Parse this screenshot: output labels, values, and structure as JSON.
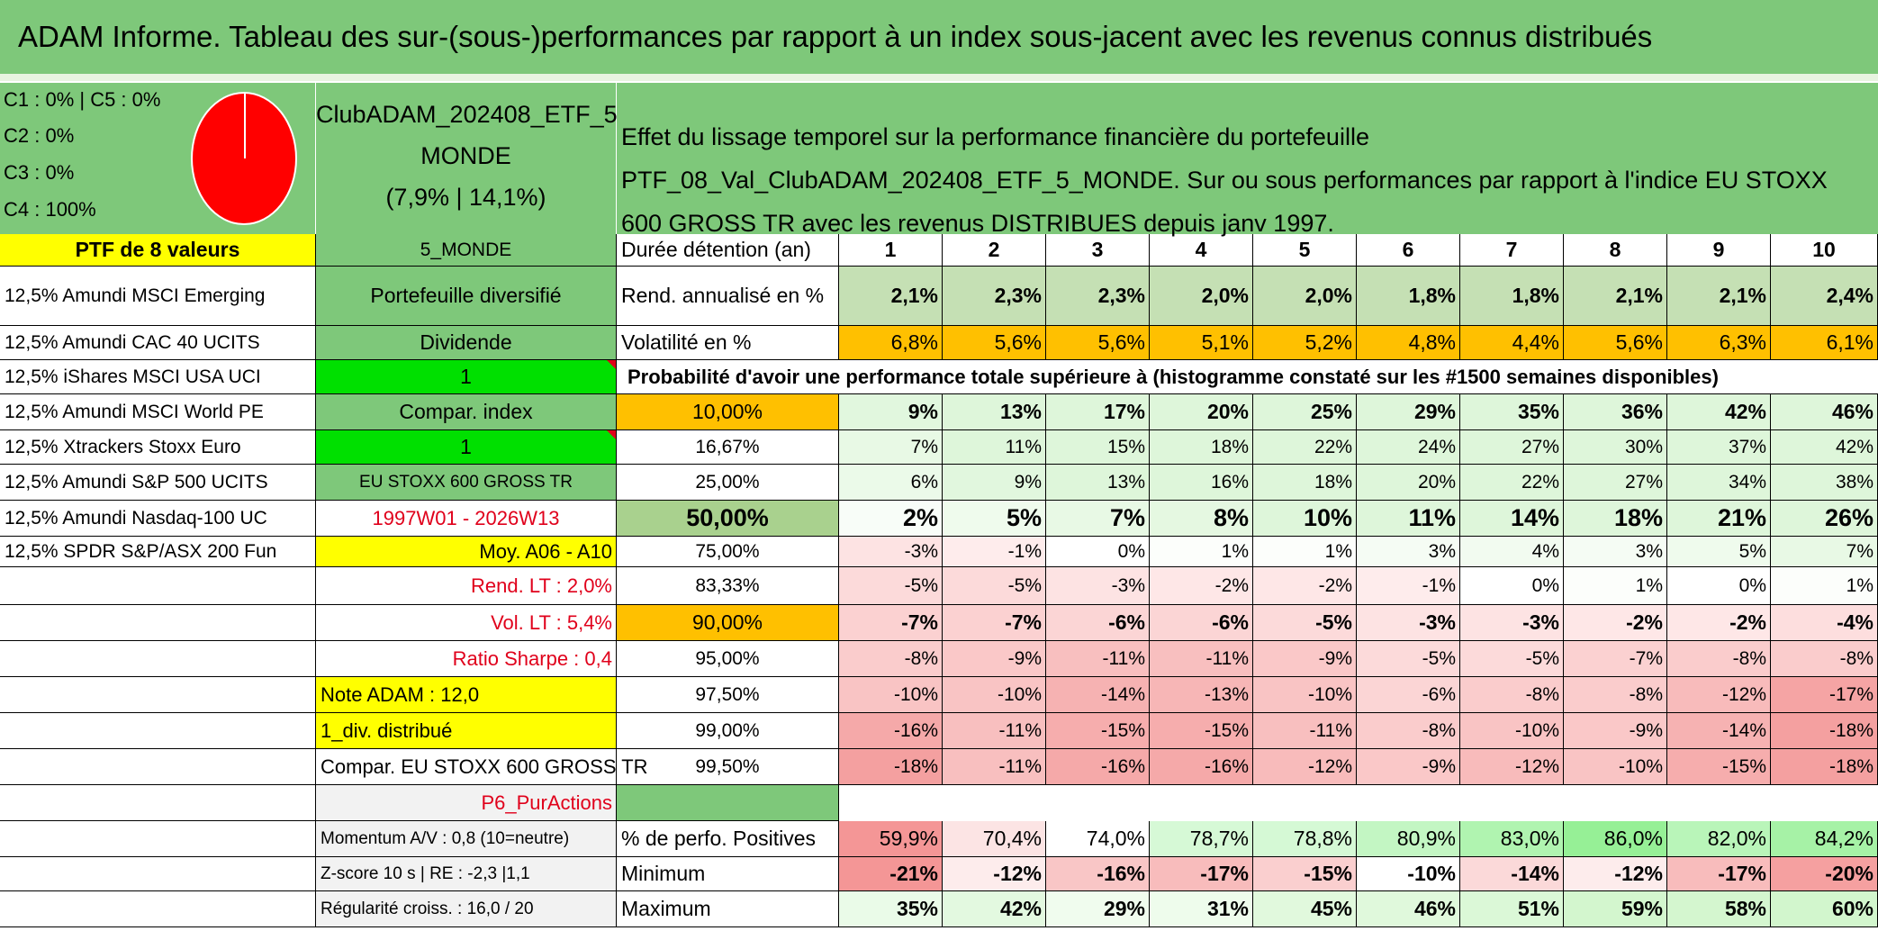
{
  "title": "ADAM Informe. Tableau des sur-(sous-)performances par rapport à un index sous-jacent avec les revenus connus distribués",
  "pie": {
    "labels": [
      "C1 : 0% | C5 : 0%",
      "C2 : 0%",
      "C3 : 0%",
      "C4 : 100%"
    ],
    "color": "#ff0000"
  },
  "portfolio": {
    "name_line1": "ClubADAM_202408_ETF_5_",
    "name_line2": "MONDE",
    "name_line3": "(7,9% | 14,1%)",
    "description": "Effet du lissage temporel sur la performance financière du portefeuille PTF_08_Val_ClubADAM_202408_ETF_5_MONDE. Sur ou sous performances par rapport à l'indice EU STOXX 600 GROSS TR avec les revenus DISTRIBUES depuis janv 1997."
  },
  "holdings_header": "PTF de 8 valeurs",
  "holdings": [
    "12,5% Amundi MSCI Emerging",
    "12,5% Amundi CAC 40 UCITS",
    "12,5% iShares MSCI USA UCI",
    "12,5% Amundi MSCI World PE",
    "12,5% Xtrackers Stoxx Euro",
    "12,5% Amundi S&P 500 UCITS",
    "12,5% Amundi Nasdaq-100 UC",
    "12,5% SPDR S&P/ASX 200 Fun"
  ],
  "side": {
    "code": "5_MONDE",
    "type": "Portefeuille diversifié",
    "dividende_label": "Dividende",
    "dividende_value": "1",
    "compar_label": "Compar. index",
    "compar_value": "1",
    "index_name": "EU STOXX 600 GROSS TR",
    "period": "1997W01 - 2026W13",
    "moy": "Moy. A06 - A10",
    "rend_lt": "Rend. LT : 2,0%",
    "vol_lt": "Vol. LT : 5,4%",
    "sharpe": "Ratio Sharpe : 0,4",
    "note": "Note ADAM : 12,0",
    "div": "1_div. distribué",
    "compar_full": "Compar. EU STOXX 600 GROSS TR",
    "p6": "P6_PurActions",
    "momentum": "Momentum A/V : 0,8 (10=neutre)",
    "zscore": "Z-score 10 s | RE : -2,3 |1,1",
    "regularite": "Régularité croiss. : 16,0 / 20"
  },
  "table": {
    "duree_label": "Durée détention (an)",
    "years": [
      "1",
      "2",
      "3",
      "4",
      "5",
      "6",
      "7",
      "8",
      "9",
      "10"
    ],
    "rend_label": "Rend. annualisé en %",
    "rend": [
      "2,1%",
      "2,3%",
      "2,3%",
      "2,0%",
      "2,0%",
      "1,8%",
      "1,8%",
      "2,1%",
      "2,1%",
      "2,4%"
    ],
    "vol_label": "Volatilité en %",
    "vol": [
      "6,8%",
      "5,6%",
      "5,6%",
      "5,1%",
      "5,2%",
      "4,8%",
      "4,4%",
      "5,6%",
      "6,3%",
      "6,1%"
    ],
    "prob_label": "Probabilité d'avoir une performance totale supérieure à (histogramme constaté sur les #1500 semaines disponibles)",
    "quantiles": [
      {
        "q": "10,00%",
        "v": [
          "9%",
          "13%",
          "17%",
          "20%",
          "25%",
          "29%",
          "35%",
          "36%",
          "42%",
          "46%"
        ]
      },
      {
        "q": "16,67%",
        "v": [
          "7%",
          "11%",
          "15%",
          "18%",
          "22%",
          "24%",
          "27%",
          "30%",
          "37%",
          "42%"
        ]
      },
      {
        "q": "25,00%",
        "v": [
          "6%",
          "9%",
          "13%",
          "16%",
          "18%",
          "20%",
          "22%",
          "27%",
          "34%",
          "38%"
        ]
      },
      {
        "q": "50,00%",
        "v": [
          "2%",
          "5%",
          "7%",
          "8%",
          "10%",
          "11%",
          "14%",
          "18%",
          "21%",
          "26%"
        ]
      },
      {
        "q": "75,00%",
        "v": [
          "-3%",
          "-1%",
          "0%",
          "1%",
          "1%",
          "3%",
          "4%",
          "3%",
          "5%",
          "7%"
        ]
      },
      {
        "q": "83,33%",
        "v": [
          "-5%",
          "-5%",
          "-3%",
          "-2%",
          "-2%",
          "-1%",
          "0%",
          "1%",
          "0%",
          "1%"
        ]
      },
      {
        "q": "90,00%",
        "v": [
          "-7%",
          "-7%",
          "-6%",
          "-6%",
          "-5%",
          "-3%",
          "-3%",
          "-2%",
          "-2%",
          "-4%"
        ]
      },
      {
        "q": "95,00%",
        "v": [
          "-8%",
          "-9%",
          "-11%",
          "-11%",
          "-9%",
          "-5%",
          "-5%",
          "-7%",
          "-8%",
          "-8%"
        ]
      },
      {
        "q": "97,50%",
        "v": [
          "-10%",
          "-10%",
          "-14%",
          "-13%",
          "-10%",
          "-6%",
          "-8%",
          "-8%",
          "-12%",
          "-17%"
        ]
      },
      {
        "q": "99,00%",
        "v": [
          "-16%",
          "-11%",
          "-15%",
          "-15%",
          "-11%",
          "-8%",
          "-10%",
          "-9%",
          "-14%",
          "-18%"
        ]
      },
      {
        "q": "99,50%",
        "v": [
          "-18%",
          "-11%",
          "-16%",
          "-16%",
          "-12%",
          "-9%",
          "-12%",
          "-10%",
          "-15%",
          "-18%"
        ]
      }
    ],
    "pos_label": "% de perfo. Positives",
    "pos": [
      "59,9%",
      "70,4%",
      "74,0%",
      "78,7%",
      "78,8%",
      "80,9%",
      "83,0%",
      "86,0%",
      "82,0%",
      "84,2%"
    ],
    "min_label": "Minimum",
    "min": [
      "-21%",
      "-12%",
      "-16%",
      "-17%",
      "-15%",
      "-10%",
      "-14%",
      "-12%",
      "-17%",
      "-20%"
    ],
    "max_label": "Maximum",
    "max": [
      "35%",
      "42%",
      "29%",
      "31%",
      "45%",
      "46%",
      "51%",
      "59%",
      "58%",
      "60%"
    ]
  },
  "colors": {
    "header_green": "#7ec87a",
    "yellow": "#ffff00",
    "bright_green": "#00e000",
    "orange": "#ffc000",
    "rend_green": "#c5e0b4",
    "light_grey": "#f2f2f2"
  }
}
